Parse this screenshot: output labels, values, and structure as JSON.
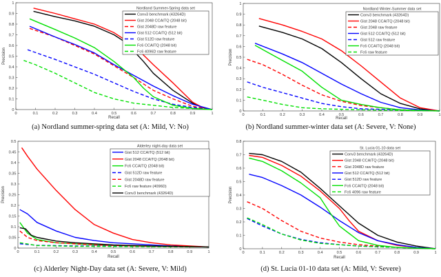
{
  "captions": [
    "(a) Nordland summer-spring data set (A: Mild, V: No)",
    "(b) Nordland summer-winter data set (A: Severe, V: None)",
    "(c) Alderley Night-Day data set (A: Severe, V: Mild)",
    "(d) St. Lucia 01-10 data set (A: Mild, V: Severe)"
  ],
  "chart_data": [
    {
      "type": "line",
      "title": "Nordland Summer-Spring data set",
      "xlabel": "Recall",
      "ylabel": "Precision",
      "xlim": [
        0,
        1
      ],
      "ylim": [
        0,
        1
      ],
      "xticks": [
        "0",
        "0.1",
        "0.2",
        "0.3",
        "0.4",
        "0.5",
        "0.6",
        "0.7",
        "0.8",
        "0.9",
        "1"
      ],
      "yticks": [
        "0",
        "0.1",
        "0.2",
        "0.3",
        "0.4",
        "0.5",
        "0.6",
        "0.7",
        "0.8",
        "0.9",
        "1"
      ],
      "legend": "top-right",
      "series": [
        {
          "name": "Conv3 benchmark (43264D)",
          "color": "#000000",
          "dashed": false,
          "x": [
            0.09,
            0.2,
            0.3,
            0.4,
            0.5,
            0.55,
            0.6,
            0.65,
            0.7,
            0.8,
            0.9,
            0.95,
            1
          ],
          "y": [
            0.92,
            0.87,
            0.83,
            0.78,
            0.7,
            0.64,
            0.55,
            0.45,
            0.34,
            0.18,
            0.06,
            0.02,
            0
          ]
        },
        {
          "name": "Gist 2048 CCAITQ (2048 bit)",
          "color": "#ff0000",
          "dashed": false,
          "x": [
            0.09,
            0.2,
            0.3,
            0.4,
            0.5,
            0.6,
            0.7,
            0.8,
            0.9,
            0.95,
            1
          ],
          "y": [
            0.95,
            0.9,
            0.85,
            0.8,
            0.72,
            0.6,
            0.42,
            0.25,
            0.07,
            0.02,
            0
          ]
        },
        {
          "name": "Gist 2048D raw feature",
          "color": "#ff0000",
          "dashed": true,
          "x": [
            0.07,
            0.2,
            0.3,
            0.4,
            0.5,
            0.6,
            0.7,
            0.8,
            0.9,
            1
          ],
          "y": [
            0.76,
            0.68,
            0.6,
            0.52,
            0.41,
            0.3,
            0.18,
            0.1,
            0.03,
            0
          ]
        },
        {
          "name": "Gist 512 CCAITQ (512 bit)",
          "color": "#0000ff",
          "dashed": false,
          "x": [
            0.07,
            0.2,
            0.3,
            0.4,
            0.5,
            0.6,
            0.7,
            0.8,
            0.9,
            1
          ],
          "y": [
            0.78,
            0.68,
            0.61,
            0.53,
            0.42,
            0.32,
            0.22,
            0.13,
            0.05,
            0
          ]
        },
        {
          "name": "Gist 512D raw feature",
          "color": "#0000ff",
          "dashed": true,
          "x": [
            0.06,
            0.2,
            0.3,
            0.4,
            0.5,
            0.6,
            0.7,
            0.8,
            0.9,
            1
          ],
          "y": [
            0.56,
            0.47,
            0.4,
            0.33,
            0.25,
            0.17,
            0.1,
            0.05,
            0.02,
            0
          ]
        },
        {
          "name": "Fc6 CCAITQ (2048 bit)",
          "color": "#00e000",
          "dashed": false,
          "x": [
            0.07,
            0.2,
            0.3,
            0.4,
            0.5,
            0.6,
            0.65,
            0.7,
            0.8,
            0.9,
            1
          ],
          "y": [
            0.85,
            0.75,
            0.67,
            0.58,
            0.45,
            0.3,
            0.2,
            0.12,
            0.04,
            0.01,
            0
          ]
        },
        {
          "name": "Fc6 4096D raw feature",
          "color": "#00e000",
          "dashed": true,
          "x": [
            0.04,
            0.1,
            0.2,
            0.3,
            0.4,
            0.5,
            0.6,
            0.7,
            0.8,
            0.9,
            1
          ],
          "y": [
            0.46,
            0.42,
            0.34,
            0.25,
            0.16,
            0.1,
            0.06,
            0.04,
            0.02,
            0.01,
            0
          ]
        }
      ]
    },
    {
      "type": "line",
      "title": "Nordland Winter-Summer data set",
      "xlabel": "Recall",
      "ylabel": "Precision",
      "xlim": [
        0,
        1
      ],
      "ylim": [
        0,
        1
      ],
      "xticks": [
        "0",
        "0.1",
        "0.2",
        "0.3",
        "0.4",
        "0.5",
        "0.6",
        "0.7",
        "0.8",
        "0.9",
        "1"
      ],
      "yticks": [
        "0",
        "0.1",
        "0.2",
        "0.3",
        "0.4",
        "0.5",
        "0.6",
        "0.7",
        "0.8",
        "0.9",
        "1"
      ],
      "legend": "top-right",
      "series": [
        {
          "name": "Conv3 benchmark (43264D)",
          "color": "#000000",
          "dashed": false,
          "x": [
            0.08,
            0.2,
            0.3,
            0.4,
            0.5,
            0.6,
            0.7,
            0.8,
            0.9,
            1
          ],
          "y": [
            0.79,
            0.73,
            0.67,
            0.58,
            0.45,
            0.3,
            0.16,
            0.07,
            0.02,
            0
          ]
        },
        {
          "name": "Gist 2048 CCAITQ (2048 bit)",
          "color": "#ff0000",
          "dashed": false,
          "x": [
            0.08,
            0.2,
            0.3,
            0.4,
            0.5,
            0.6,
            0.7,
            0.8,
            0.9,
            1
          ],
          "y": [
            0.86,
            0.8,
            0.74,
            0.67,
            0.56,
            0.42,
            0.27,
            0.12,
            0.03,
            0
          ]
        },
        {
          "name": "Gist 2048 raw feature",
          "color": "#ff0000",
          "dashed": true,
          "x": [
            0.02,
            0.1,
            0.2,
            0.3,
            0.4,
            0.5,
            0.6,
            0.7,
            0.8,
            1
          ],
          "y": [
            0.48,
            0.43,
            0.34,
            0.24,
            0.15,
            0.09,
            0.05,
            0.03,
            0.01,
            0
          ]
        },
        {
          "name": "Gist 512 CCAITQ (512 bit)",
          "color": "#0000ff",
          "dashed": false,
          "x": [
            0.06,
            0.2,
            0.3,
            0.4,
            0.5,
            0.6,
            0.7,
            0.8,
            0.9,
            1
          ],
          "y": [
            0.63,
            0.53,
            0.45,
            0.35,
            0.25,
            0.16,
            0.08,
            0.03,
            0.01,
            0
          ]
        },
        {
          "name": "Gist 512 raw feature",
          "color": "#0000ff",
          "dashed": true,
          "x": [
            0.02,
            0.1,
            0.2,
            0.3,
            0.4,
            0.5,
            0.6,
            0.8,
            1
          ],
          "y": [
            0.27,
            0.22,
            0.17,
            0.12,
            0.07,
            0.04,
            0.02,
            0.01,
            0
          ]
        },
        {
          "name": "Fc6 CCAITQ (2048 bit)",
          "color": "#00e000",
          "dashed": false,
          "x": [
            0.06,
            0.2,
            0.3,
            0.4,
            0.5,
            0.6,
            0.7,
            0.8,
            1
          ],
          "y": [
            0.61,
            0.47,
            0.37,
            0.22,
            0.1,
            0.06,
            0.03,
            0.01,
            0
          ]
        },
        {
          "name": "Fc6 raw feature",
          "color": "#00e000",
          "dashed": true,
          "x": [
            0.02,
            0.1,
            0.2,
            0.3,
            0.4,
            0.6,
            1
          ],
          "y": [
            0.13,
            0.1,
            0.06,
            0.03,
            0.02,
            0.01,
            0
          ]
        }
      ]
    },
    {
      "type": "line",
      "title": "Alderley night-day data set",
      "xlabel": "Recall",
      "ylabel": "Precision",
      "xlim": [
        0,
        1
      ],
      "ylim": [
        0,
        0.5
      ],
      "xticks": [
        "0",
        "0.1",
        "0.2",
        "0.3",
        "0.4",
        "0.5",
        "0.6",
        "0.7",
        "0.8",
        "0.9",
        "1"
      ],
      "yticks": [
        "0",
        "0.05",
        "0.1",
        "0.15",
        "0.2",
        "0.25",
        "0.3",
        "0.35",
        "0.4",
        "0.45",
        "0.5"
      ],
      "legend": "top-right",
      "series": [
        {
          "name": "Gist 512 CCAITQ (512 bit)",
          "color": "#0000ff",
          "dashed": false,
          "x": [
            0.01,
            0.05,
            0.1,
            0.2,
            0.3,
            0.4,
            0.5,
            0.6,
            0.7,
            0.8,
            1
          ],
          "y": [
            0.18,
            0.16,
            0.12,
            0.08,
            0.05,
            0.035,
            0.025,
            0.02,
            0.015,
            0.01,
            0.005
          ]
        },
        {
          "name": "Gist 2048 CCAITQ (2048 bit)",
          "color": "#ff0000",
          "dashed": false,
          "x": [
            0.02,
            0.05,
            0.1,
            0.2,
            0.3,
            0.4,
            0.5,
            0.6,
            0.7,
            0.8,
            0.9,
            1
          ],
          "y": [
            0.47,
            0.43,
            0.37,
            0.27,
            0.18,
            0.11,
            0.07,
            0.04,
            0.025,
            0.015,
            0.01,
            0.005
          ]
        },
        {
          "name": "Fc6 CCAITQ (2048 bit)",
          "color": "#00e000",
          "dashed": false,
          "x": [
            0.01,
            0.05,
            0.1,
            0.2,
            0.4,
            0.6,
            1
          ],
          "y": [
            0.12,
            0.07,
            0.04,
            0.025,
            0.015,
            0.01,
            0.005
          ]
        },
        {
          "name": "Gist 512D raw feature",
          "color": "#0000ff",
          "dashed": true,
          "x": [
            0.01,
            0.1,
            0.3,
            1
          ],
          "y": [
            0.02,
            0.013,
            0.01,
            0.005
          ]
        },
        {
          "name": "Gist 2048D raw feature",
          "color": "#ff0000",
          "dashed": true,
          "x": [
            0.01,
            0.05,
            0.1,
            0.2,
            0.4,
            0.6,
            1
          ],
          "y": [
            0.08,
            0.05,
            0.035,
            0.025,
            0.015,
            0.01,
            0.005
          ]
        },
        {
          "name": "Fc6 raw feature (4096D)",
          "color": "#00e000",
          "dashed": true,
          "x": [
            0.01,
            0.1,
            0.3,
            1
          ],
          "y": [
            0.025,
            0.012,
            0.008,
            0.005
          ]
        },
        {
          "name": "Conv3 benchmark (43264D)",
          "color": "#000000",
          "dashed": false,
          "x": [
            0.01,
            0.04,
            0.07,
            0.1,
            0.2,
            0.3,
            0.5,
            0.7,
            1
          ],
          "y": [
            0.095,
            0.09,
            0.06,
            0.05,
            0.033,
            0.025,
            0.015,
            0.01,
            0.005
          ]
        }
      ]
    },
    {
      "type": "line",
      "title": "St. Lucia 01-10 data set",
      "xlabel": "Recall",
      "ylabel": "Precision",
      "xlim": [
        0,
        1
      ],
      "ylim": [
        0,
        0.8
      ],
      "xticks": [
        "0",
        "0.1",
        "0.2",
        "0.3",
        "0.4",
        "0.5",
        "0.6",
        "0.7",
        "0.8",
        "0.9",
        "1"
      ],
      "yticks": [
        "0",
        "0.1",
        "0.2",
        "0.3",
        "0.4",
        "0.5",
        "0.6",
        "0.7",
        "0.8"
      ],
      "legend": "top-right",
      "series": [
        {
          "name": "Conv3 benchmark (43264D)",
          "color": "#000000",
          "dashed": false,
          "x": [
            0.03,
            0.1,
            0.2,
            0.3,
            0.4,
            0.5,
            0.6,
            0.7,
            0.8,
            0.9,
            1
          ],
          "y": [
            0.71,
            0.7,
            0.65,
            0.57,
            0.45,
            0.32,
            0.19,
            0.1,
            0.05,
            0.02,
            0
          ]
        },
        {
          "name": "Gist 2048 CCAITQ (2048 bit)",
          "color": "#ff0000",
          "dashed": false,
          "x": [
            0.03,
            0.1,
            0.2,
            0.3,
            0.4,
            0.5,
            0.55,
            0.6,
            0.7,
            0.8,
            0.9,
            1
          ],
          "y": [
            0.695,
            0.68,
            0.62,
            0.54,
            0.43,
            0.3,
            0.21,
            0.13,
            0.06,
            0.025,
            0.01,
            0
          ]
        },
        {
          "name": "Gist 2048D raw feature",
          "color": "#ff0000",
          "dashed": true,
          "x": [
            0.02,
            0.1,
            0.2,
            0.3,
            0.4,
            0.5,
            0.6,
            0.7,
            0.8,
            1
          ],
          "y": [
            0.35,
            0.3,
            0.21,
            0.13,
            0.08,
            0.05,
            0.03,
            0.02,
            0.01,
            0
          ]
        },
        {
          "name": "Gist 512 CCAITQ (512 bit)",
          "color": "#0000ff",
          "dashed": false,
          "x": [
            0.03,
            0.1,
            0.2,
            0.3,
            0.4,
            0.5,
            0.6,
            0.7,
            0.8,
            0.9,
            1
          ],
          "y": [
            0.555,
            0.53,
            0.47,
            0.4,
            0.31,
            0.21,
            0.12,
            0.06,
            0.03,
            0.01,
            0
          ]
        },
        {
          "name": "Gist 512D raw feature",
          "color": "#0000ff",
          "dashed": true,
          "x": [
            0.02,
            0.1,
            0.2,
            0.3,
            0.4,
            0.5,
            0.6,
            0.8,
            1
          ],
          "y": [
            0.225,
            0.17,
            0.11,
            0.07,
            0.045,
            0.03,
            0.02,
            0.01,
            0
          ]
        },
        {
          "name": "Fc6 CCAITQ (2048 bit)",
          "color": "#00e000",
          "dashed": false,
          "x": [
            0.03,
            0.1,
            0.2,
            0.3,
            0.4,
            0.45,
            0.5,
            0.6,
            0.7,
            0.8,
            1
          ],
          "y": [
            0.675,
            0.65,
            0.58,
            0.49,
            0.38,
            0.27,
            0.17,
            0.06,
            0.025,
            0.01,
            0
          ]
        },
        {
          "name": "Fc6 4096 raw feature",
          "color": "#00e000",
          "dashed": true,
          "x": [
            0.02,
            0.1,
            0.2,
            0.3,
            0.4,
            0.5,
            0.6,
            0.8,
            1
          ],
          "y": [
            0.23,
            0.18,
            0.11,
            0.065,
            0.04,
            0.03,
            0.02,
            0.01,
            0
          ]
        }
      ]
    }
  ]
}
